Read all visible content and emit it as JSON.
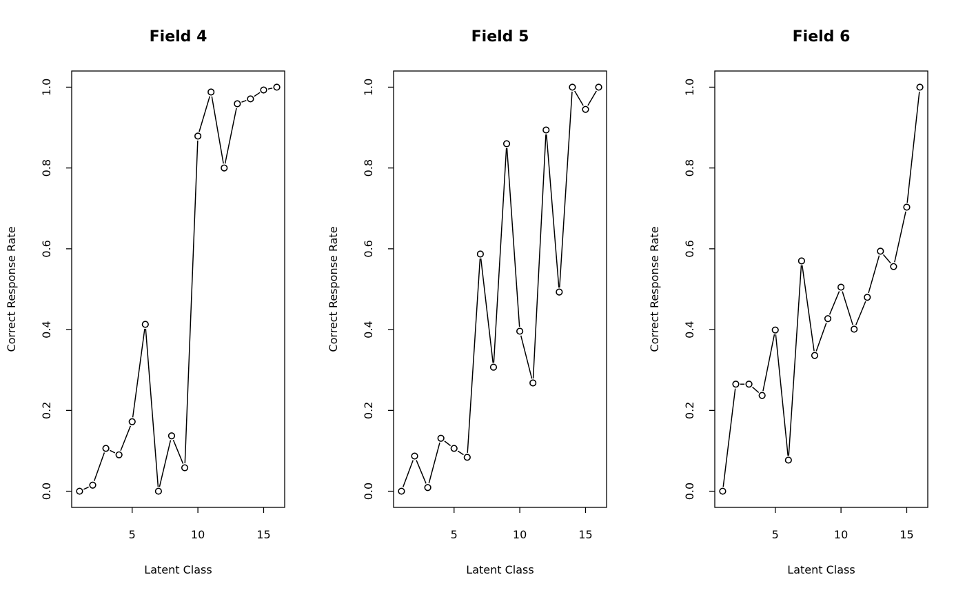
{
  "chart_data": [
    {
      "type": "line",
      "title": "Field 4",
      "xlabel": "Latent Class",
      "ylabel": "Correct Response Rate",
      "xlim": [
        0.4,
        16.6
      ],
      "ylim": [
        -0.04,
        1.04
      ],
      "xticks": [
        5,
        10,
        15
      ],
      "yticks": [
        "0.0",
        "0.2",
        "0.4",
        "0.6",
        "0.8",
        "1.0"
      ],
      "x": [
        1,
        2,
        3,
        4,
        5,
        6,
        7,
        8,
        9,
        10,
        11,
        12,
        13,
        14,
        15,
        16
      ],
      "y": [
        0.0,
        0.015,
        0.106,
        0.09,
        0.172,
        0.413,
        0.0,
        0.137,
        0.058,
        0.879,
        0.988,
        0.8,
        0.959,
        0.971,
        0.993,
        1.0
      ]
    },
    {
      "type": "line",
      "title": "Field 5",
      "xlabel": "Latent Class",
      "ylabel": "Correct Response Rate",
      "xlim": [
        0.4,
        16.6
      ],
      "ylim": [
        -0.04,
        1.04
      ],
      "xticks": [
        5,
        10,
        15
      ],
      "yticks": [
        "0.0",
        "0.2",
        "0.4",
        "0.6",
        "0.8",
        "1.0"
      ],
      "x": [
        1,
        2,
        3,
        4,
        5,
        6,
        7,
        8,
        9,
        10,
        11,
        12,
        13,
        14,
        15,
        16
      ],
      "y": [
        0.0,
        0.087,
        0.009,
        0.131,
        0.106,
        0.084,
        0.587,
        0.307,
        0.86,
        0.396,
        0.268,
        0.894,
        0.493,
        1.0,
        0.945,
        1.0
      ]
    },
    {
      "type": "line",
      "title": "Field 6",
      "xlabel": "Latent Class",
      "ylabel": "Correct Response Rate",
      "xlim": [
        0.4,
        16.6
      ],
      "ylim": [
        -0.04,
        1.04
      ],
      "xticks": [
        5,
        10,
        15
      ],
      "yticks": [
        "0.0",
        "0.2",
        "0.4",
        "0.6",
        "0.8",
        "1.0"
      ],
      "x": [
        1,
        2,
        3,
        4,
        5,
        6,
        7,
        8,
        9,
        10,
        11,
        12,
        13,
        14,
        15,
        16
      ],
      "y": [
        0.0,
        0.265,
        0.265,
        0.237,
        0.399,
        0.077,
        0.57,
        0.336,
        0.427,
        0.505,
        0.401,
        0.48,
        0.594,
        0.556,
        0.703,
        1.0
      ]
    }
  ]
}
